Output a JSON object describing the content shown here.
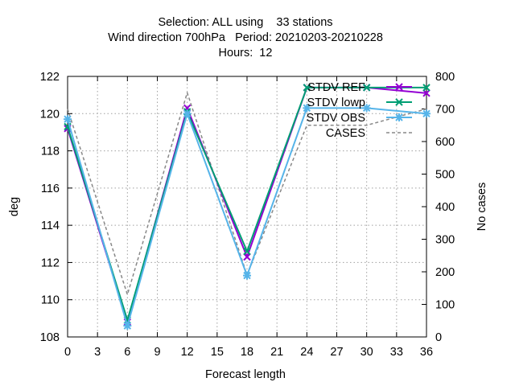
{
  "chart_data": {
    "type": "line",
    "title_lines": [
      "Selection: ALL using    33 stations",
      "Wind direction 700hPa   Period: 20210203-20210228",
      "Hours:  12"
    ],
    "xlabel": "Forecast length",
    "ylabel": "deg",
    "y2label": "No cases",
    "xlim": [
      0,
      36
    ],
    "ylim": [
      108,
      122
    ],
    "y2lim": [
      0,
      800
    ],
    "xticks": [
      0,
      3,
      6,
      9,
      12,
      15,
      18,
      21,
      24,
      27,
      30,
      33,
      36
    ],
    "yticks": [
      108,
      110,
      112,
      114,
      116,
      118,
      120,
      122
    ],
    "y2ticks": [
      0,
      100,
      200,
      300,
      400,
      500,
      600,
      700,
      800
    ],
    "grid": true,
    "legend_position": "top-right",
    "x": [
      0,
      6,
      12,
      18,
      24,
      30,
      36
    ],
    "series": [
      {
        "name": "STDV REF",
        "axis": "y",
        "color": "#9400d3",
        "marker": "x",
        "values": [
          119.2,
          108.8,
          120.3,
          112.3,
          121.4,
          121.4,
          121.1
        ]
      },
      {
        "name": "STDV lowp",
        "axis": "y",
        "color": "#009e73",
        "marker": "x",
        "values": [
          119.3,
          108.9,
          120.1,
          112.6,
          121.4,
          121.4,
          121.4
        ]
      },
      {
        "name": "STDV OBS",
        "axis": "y",
        "color": "#56b4e9",
        "marker": "star",
        "values": [
          119.7,
          108.6,
          120.0,
          111.3,
          120.3,
          120.3,
          120.0
        ]
      },
      {
        "name": "CASES",
        "axis": "y2",
        "color": "#888888",
        "marker": "none",
        "dashed": true,
        "values": [
          700,
          130,
          750,
          190,
          650,
          650,
          700
        ]
      }
    ]
  }
}
